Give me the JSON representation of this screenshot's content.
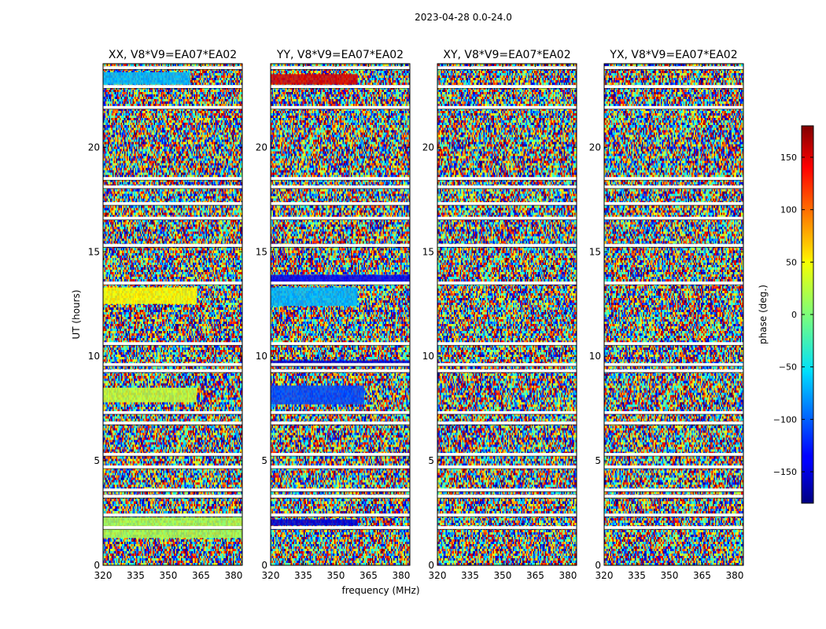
{
  "figure": {
    "suptitle": "2023-04-28 0.0-24.0",
    "xlabel": "frequency (MHz)",
    "ylabel": "UT (hours)"
  },
  "chart_data": {
    "type": "heatmap",
    "title": "2023-04-28 0.0-24.0",
    "xlabel": "frequency (MHz)",
    "ylabel": "UT (hours)",
    "xlim": [
      320,
      384
    ],
    "ylim": [
      0,
      24
    ],
    "xticks": [
      320,
      335,
      350,
      365,
      380
    ],
    "xtick_labels": [
      "320",
      "335",
      "350",
      "365",
      "380"
    ],
    "yticks": [
      0,
      5,
      10,
      15,
      20
    ],
    "ytick_labels": [
      "0",
      "5",
      "10",
      "15",
      "20"
    ],
    "panels": [
      {
        "title": "XX, V8*V9=EA07*EA02",
        "polarization": "XX"
      },
      {
        "title": "YY, V8*V9=EA07*EA02",
        "polarization": "YY"
      },
      {
        "title": "XY, V8*V9=EA07*EA02",
        "polarization": "XY"
      },
      {
        "title": "YX, V8*V9=EA07*EA02",
        "polarization": "YX"
      }
    ],
    "flagged_ut_hours": [
      1.8,
      2.4,
      3.3,
      3.6,
      4.7,
      5.3,
      6.8,
      7.3,
      9.3,
      9.6,
      10.6,
      13.5,
      15.3,
      16.6,
      17.3,
      18.1,
      18.5,
      21.9,
      22.9,
      23.8
    ],
    "coherent_bands": {
      "XX": [
        {
          "ut": [
            1.3,
            2.3
          ],
          "phase": 15,
          "fmax": 384
        },
        {
          "ut": [
            7.8,
            8.5
          ],
          "phase": 25,
          "fmax": 363
        },
        {
          "ut": [
            12.5,
            13.3
          ],
          "phase": 45,
          "fmax": 363
        },
        {
          "ut": [
            23.0,
            23.6
          ],
          "phase": -70,
          "fmax": 360
        }
      ],
      "YY": [
        {
          "ut": [
            1.9,
            2.2
          ],
          "phase": -150,
          "fmax": 360
        },
        {
          "ut": [
            7.7,
            8.6
          ],
          "phase": -110,
          "fmax": 363
        },
        {
          "ut": [
            9.5,
            9.8
          ],
          "phase": -150,
          "fmax": 384
        },
        {
          "ut": [
            12.4,
            13.3
          ],
          "phase": -70,
          "fmax": 360
        },
        {
          "ut": [
            13.5,
            13.9
          ],
          "phase": -140,
          "fmax": 384
        },
        {
          "ut": [
            23.0,
            23.5
          ],
          "phase": 150,
          "fmax": 360
        }
      ],
      "XY": [],
      "YX": []
    },
    "colorbar": {
      "label": "phase (deg.)",
      "range": [
        -180,
        180
      ],
      "ticks": [
        -150,
        -100,
        -50,
        0,
        50,
        100,
        150
      ],
      "tick_labels": [
        "−150",
        "−100",
        "−50",
        "0",
        "50",
        "100",
        "150"
      ]
    }
  }
}
